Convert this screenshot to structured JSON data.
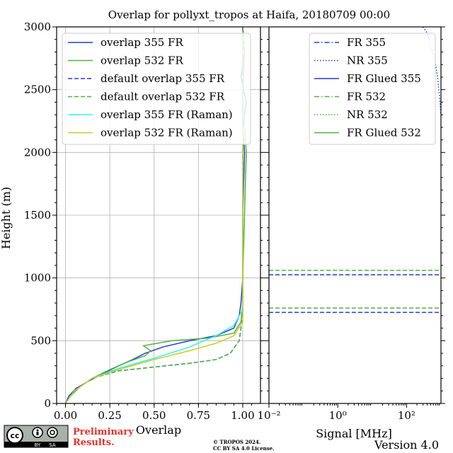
{
  "chart_data": [
    {
      "type": "line",
      "title": "Overlap for pollyxt_tropos at Haifa, 20180709 00:00",
      "xlabel": "Overlap",
      "ylabel": "Height (m)",
      "xlim": [
        -0.05,
        1.1
      ],
      "ylim": [
        0,
        3000
      ],
      "xticks": [
        "0.00",
        "0.25",
        "0.50",
        "0.75",
        "1.00"
      ],
      "yticks": [
        "0",
        "500",
        "1000",
        "1500",
        "2000",
        "2500",
        "3000"
      ],
      "grid": true,
      "legend_position": "top",
      "series": [
        {
          "name": "overlap 355 FR",
          "color": "#1f3fd6",
          "style": "solid",
          "x": [
            0.0,
            0.02,
            0.06,
            0.12,
            0.2,
            0.3,
            0.38,
            0.45,
            0.55,
            0.7,
            0.85,
            0.95,
            0.98,
            0.99,
            1.0,
            1.0,
            1.01,
            1.0,
            1.02,
            0.99,
            1.01,
            1.0
          ],
          "y": [
            0,
            60,
            120,
            170,
            230,
            300,
            350,
            400,
            450,
            500,
            540,
            600,
            700,
            800,
            1000,
            1500,
            2000,
            2200,
            2400,
            2600,
            2800,
            3000
          ]
        },
        {
          "name": "overlap 532 FR",
          "color": "#56b040",
          "style": "solid",
          "x": [
            0.0,
            0.03,
            0.08,
            0.15,
            0.25,
            0.35,
            0.45,
            0.48,
            0.44,
            0.6,
            0.8,
            0.95,
            0.99,
            1.0,
            1.0,
            1.01,
            1.02,
            1.0,
            1.01,
            1.0
          ],
          "y": [
            0,
            60,
            130,
            200,
            270,
            330,
            380,
            420,
            460,
            500,
            520,
            560,
            650,
            800,
            1000,
            1500,
            2000,
            2400,
            2800,
            3000
          ]
        },
        {
          "name": "default overlap 355 FR",
          "color": "#1f3fd6",
          "style": "dashed",
          "x": [
            0.0,
            0.05,
            0.15,
            0.3,
            0.5,
            0.7,
            0.85,
            0.93,
            0.98,
            1.0,
            1.0
          ],
          "y": [
            0,
            100,
            200,
            260,
            290,
            320,
            350,
            400,
            500,
            700,
            3000
          ]
        },
        {
          "name": "default overlap 532 FR",
          "color": "#56b040",
          "style": "dashed",
          "x": [
            0.0,
            0.05,
            0.15,
            0.3,
            0.5,
            0.7,
            0.85,
            0.93,
            0.98,
            1.0,
            1.0
          ],
          "y": [
            0,
            100,
            200,
            260,
            290,
            320,
            350,
            400,
            500,
            700,
            3000
          ]
        },
        {
          "name": "overlap 355 FR (Raman)",
          "color": "#2ef2ef",
          "style": "solid",
          "x": [
            0.0,
            0.05,
            0.15,
            0.3,
            0.5,
            0.7,
            0.85,
            0.95,
            1.0,
            1.0
          ],
          "y": [
            0,
            100,
            200,
            280,
            360,
            450,
            540,
            620,
            750,
            2200
          ]
        },
        {
          "name": "overlap 532 FR (Raman)",
          "color": "#cccc22",
          "style": "solid",
          "x": [
            0.0,
            0.05,
            0.15,
            0.3,
            0.5,
            0.7,
            0.85,
            0.95,
            1.0,
            1.0
          ],
          "y": [
            0,
            100,
            200,
            270,
            350,
            420,
            480,
            540,
            650,
            2200
          ]
        }
      ]
    },
    {
      "type": "line",
      "xlabel": "Signal [MHz]",
      "xscale": "log",
      "xlim": [
        0.01,
        1000
      ],
      "xticks": [
        "10⁻²",
        "10⁰",
        "10²"
      ],
      "ylim": [
        0,
        3000
      ],
      "legend_position": "top-right",
      "series": [
        {
          "name": "FR 355",
          "color": "#1f3fd6",
          "style": "dashdot"
        },
        {
          "name": "NR 355",
          "color": "#1f3fd6",
          "style": "dotted",
          "x": [
            300,
            400,
            500,
            650,
            800,
            900,
            1000
          ],
          "y": [
            3000,
            2950,
            2850,
            2750,
            2600,
            2450,
            2300
          ]
        },
        {
          "name": "FR Glued 355",
          "color": "#1f3fd6",
          "style": "solid"
        },
        {
          "name": "FR 532",
          "color": "#56b040",
          "style": "dashdot"
        },
        {
          "name": "NR 532",
          "color": "#56b040",
          "style": "dotted"
        },
        {
          "name": "FR Glued 532",
          "color": "#56b040",
          "style": "solid"
        }
      ],
      "hlines": [
        {
          "y": 725,
          "color": "#1f3fd6",
          "style": "dashed"
        },
        {
          "y": 760,
          "color": "#56b040",
          "style": "dashed"
        },
        {
          "y": 1025,
          "color": "#1f3fd6",
          "style": "dashed"
        },
        {
          "y": 1060,
          "color": "#56b040",
          "style": "dashed"
        }
      ]
    }
  ],
  "footer": {
    "license_badge": [
      "cc",
      "BY",
      "SA"
    ],
    "preliminary_line1": "Preliminary",
    "preliminary_line2": "Results.",
    "copyright_line1": "© TROPOS 2024.",
    "copyright_line2": "CC BY SA 4.0 License.",
    "version": "Version 4.0"
  },
  "colors": {
    "blue": "#1f3fd6",
    "green": "#56b040",
    "cyan": "#2ef2ef",
    "yellow": "#cccc22",
    "red": "#e8302a"
  }
}
